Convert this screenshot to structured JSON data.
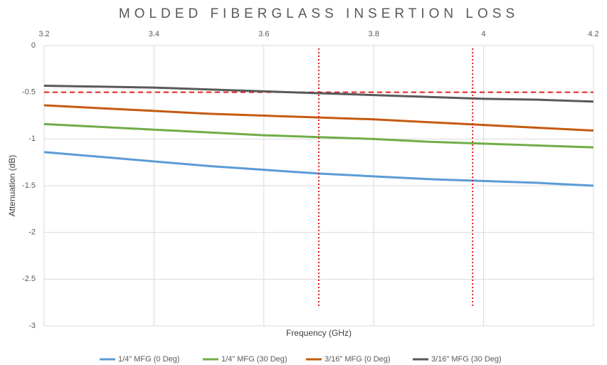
{
  "chart_data": {
    "type": "line",
    "title": "MOLDED FIBERGLASS INSERTION LOSS",
    "xlabel": "Frequency (GHz)",
    "ylabel": "Attenuation (dB)",
    "x": [
      3.2,
      3.3,
      3.4,
      3.5,
      3.6,
      3.7,
      3.8,
      3.9,
      4.0,
      4.1,
      4.2
    ],
    "series": [
      {
        "name": "1/4\" MFG (0 Deg)",
        "color": "#5b9bd5",
        "values": [
          -1.14,
          -1.19,
          -1.24,
          -1.29,
          -1.33,
          -1.37,
          -1.4,
          -1.43,
          -1.45,
          -1.47,
          -1.5
        ]
      },
      {
        "name": "1/4\" MFG (30 Deg)",
        "color": "#70ad47",
        "values": [
          -0.84,
          -0.87,
          -0.9,
          -0.93,
          -0.96,
          -0.98,
          -1.0,
          -1.03,
          -1.05,
          -1.07,
          -1.09
        ]
      },
      {
        "name": "3/16\" MFG (0 Deg)",
        "color": "#c55a11",
        "values": [
          -0.64,
          -0.67,
          -0.7,
          -0.73,
          -0.75,
          -0.77,
          -0.79,
          -0.82,
          -0.85,
          -0.88,
          -0.91
        ]
      },
      {
        "name": "3/16\" MFG (30 Deg)",
        "color": "#595959",
        "values": [
          -0.43,
          -0.44,
          -0.45,
          -0.47,
          -0.49,
          -0.51,
          -0.53,
          -0.55,
          -0.57,
          -0.58,
          -0.6
        ]
      }
    ],
    "xlim": [
      3.2,
      4.2
    ],
    "xticks": [
      3.2,
      3.4,
      3.6,
      3.8,
      4,
      4.2
    ],
    "ylim": [
      -3,
      0
    ],
    "yticks": [
      0,
      -0.5,
      -1,
      -1.5,
      -2,
      -2.5,
      -3
    ],
    "grid": true,
    "legend": "bottom",
    "reference_lines": {
      "color": "#e02020",
      "y": [
        -0.5
      ],
      "x": [
        3.7,
        3.98
      ],
      "x_span": [
        -0.03,
        -2.8
      ]
    }
  }
}
